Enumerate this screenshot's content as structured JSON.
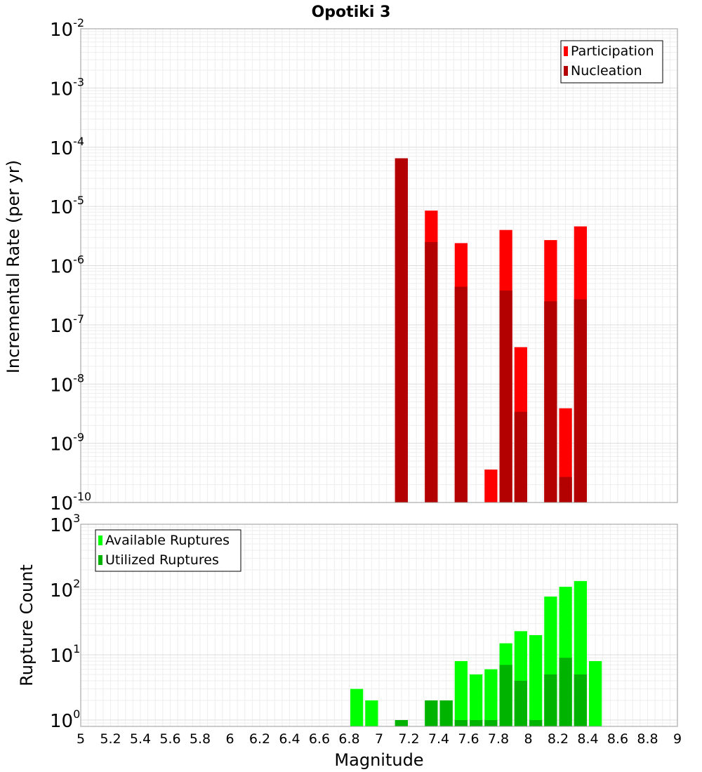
{
  "chart_data": [
    {
      "type": "bar",
      "title": "Opotiki 3",
      "xlabel": "",
      "ylabel": "Incremental Rate (per yr)",
      "yscale": "log",
      "ylim": [
        1e-10,
        0.01
      ],
      "xlim": [
        5,
        9
      ],
      "y_ticks": [
        {
          "base": "10",
          "exp": "-10",
          "value": 1e-10
        },
        {
          "base": "10",
          "exp": "-9",
          "value": 1e-09
        },
        {
          "base": "10",
          "exp": "-8",
          "value": 1e-08
        },
        {
          "base": "10",
          "exp": "-7",
          "value": 1e-07
        },
        {
          "base": "10",
          "exp": "-6",
          "value": 1e-06
        },
        {
          "base": "10",
          "exp": "-5",
          "value": 1e-05
        },
        {
          "base": "10",
          "exp": "-4",
          "value": 0.0001
        },
        {
          "base": "10",
          "exp": "-3",
          "value": 0.001
        },
        {
          "base": "10",
          "exp": "-2",
          "value": 0.01
        }
      ],
      "legend": "top-right",
      "grid": true,
      "series": [
        {
          "name": "Participation",
          "color": "#ff0000",
          "x": [
            7.15,
            7.35,
            7.55,
            7.75,
            7.85,
            7.95,
            8.15,
            8.25,
            8.35
          ],
          "values": [
            6.5e-05,
            8.5e-06,
            2.4e-06,
            3.6e-10,
            4e-06,
            4.2e-08,
            2.7e-06,
            3.9e-09,
            4.6e-06
          ]
        },
        {
          "name": "Nucleation",
          "color": "#b30000",
          "x": [
            7.15,
            7.35,
            7.55,
            7.85,
            7.95,
            8.15,
            8.25,
            8.35
          ],
          "values": [
            6.5e-05,
            2.5e-06,
            4.4e-07,
            3.8e-07,
            3.4e-09,
            2.5e-07,
            2.7e-10,
            2.7e-07
          ]
        }
      ]
    },
    {
      "type": "bar",
      "title": "",
      "xlabel": "Magnitude",
      "ylabel": "Rupture Count",
      "yscale": "log",
      "ylim": [
        0.8,
        1000
      ],
      "xlim": [
        5,
        9
      ],
      "x_ticks": [
        "5",
        "5.2",
        "5.4",
        "5.6",
        "5.8",
        "6",
        "6.2",
        "6.4",
        "6.6",
        "6.8",
        "7",
        "7.2",
        "7.4",
        "7.6",
        "7.8",
        "8",
        "8.2",
        "8.4",
        "8.6",
        "8.8",
        "9"
      ],
      "y_ticks": [
        {
          "base": "10",
          "exp": "0",
          "value": 1
        },
        {
          "base": "10",
          "exp": "1",
          "value": 10
        },
        {
          "base": "10",
          "exp": "2",
          "value": 100
        },
        {
          "base": "10",
          "exp": "3",
          "value": 1000
        }
      ],
      "legend": "top-left",
      "grid": true,
      "series": [
        {
          "name": "Available Ruptures",
          "color": "#00ff00",
          "x": [
            6.85,
            6.95,
            7.15,
            7.35,
            7.45,
            7.55,
            7.65,
            7.75,
            7.85,
            7.95,
            8.05,
            8.15,
            8.25,
            8.35,
            8.45
          ],
          "values": [
            3,
            2,
            1,
            2,
            2,
            8,
            5,
            6,
            15,
            23,
            20,
            78,
            110,
            135,
            8
          ]
        },
        {
          "name": "Utilized Ruptures",
          "color": "#00b300",
          "x": [
            7.15,
            7.35,
            7.45,
            7.55,
            7.65,
            7.75,
            7.85,
            7.95,
            8.05,
            8.15,
            8.25,
            8.35
          ],
          "values": [
            1,
            2,
            2,
            1,
            1,
            1,
            7,
            4,
            1,
            5,
            9,
            5
          ]
        }
      ]
    }
  ]
}
